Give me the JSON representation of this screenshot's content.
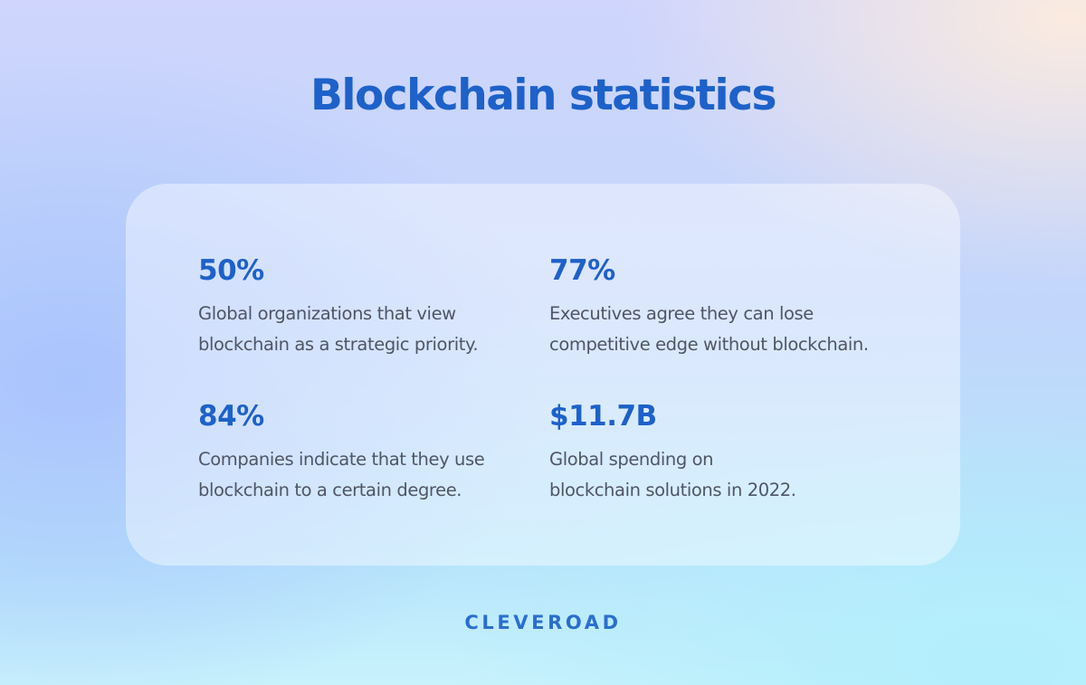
{
  "title": "Blockchain statistics",
  "stats": [
    {
      "value": "50%",
      "description": "Global organizations that view\nblockchain as a strategic priority."
    },
    {
      "value": "77%",
      "description": "Executives agree they can lose\ncompetitive edge without blockchain."
    },
    {
      "value": "84%",
      "description": "Companies indicate that they use\nblockchain to a certain degree."
    },
    {
      "value": "$11.7B",
      "description": "Global spending on\nblockchain solutions in 2022."
    }
  ],
  "brand": "CLEVEROAD",
  "colors": {
    "accent": "#1d61c9",
    "body_text": "#4f5566"
  }
}
